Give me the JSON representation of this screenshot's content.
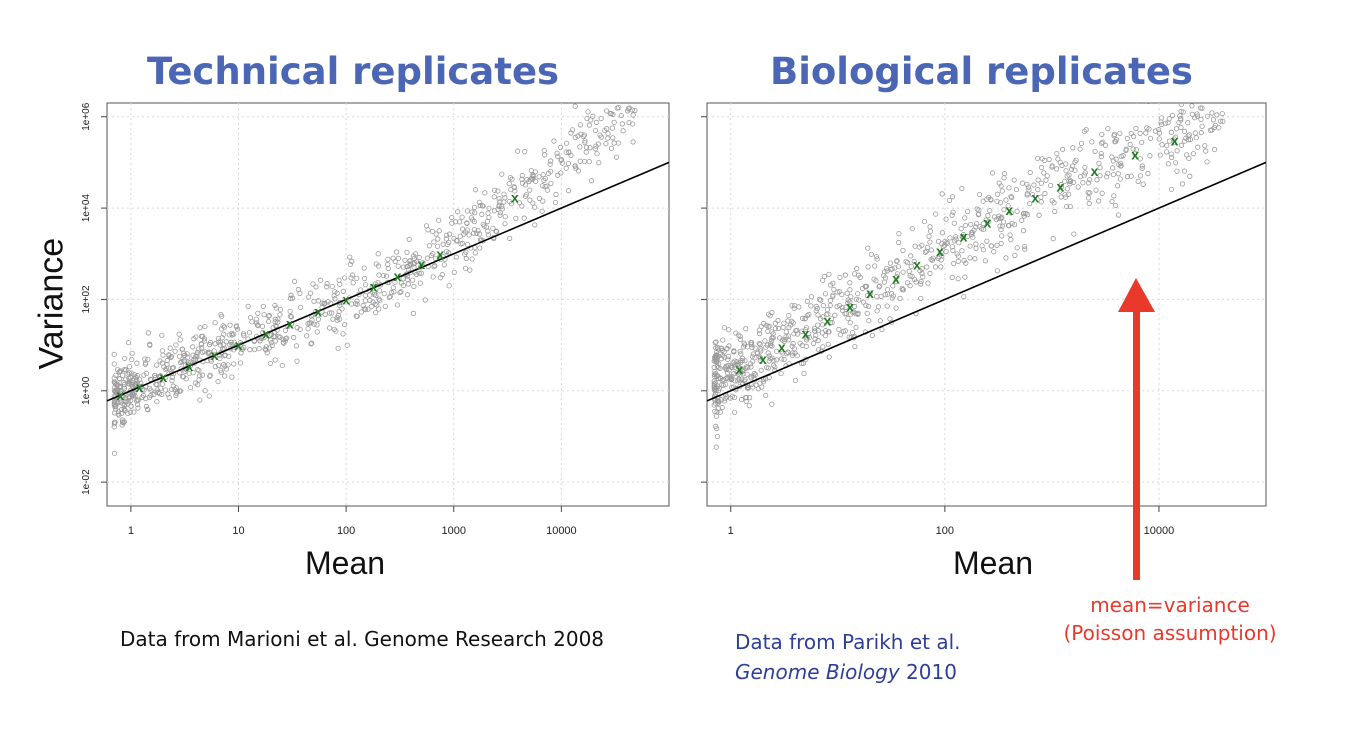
{
  "colors": {
    "title": "#4a66b5",
    "points": "#9a9a9a",
    "trend": "#1f7a1f",
    "line": "#000000",
    "arrow": "#e8392b",
    "source_left": "#111111",
    "source_right": "#2d3f96"
  },
  "shared": {
    "ylabel": "Variance",
    "xlabel": "Mean"
  },
  "chart_data": [
    {
      "type": "scatter",
      "title": "Technical replicates",
      "xlabel": "Mean",
      "ylabel": "Variance",
      "log_x": true,
      "log_y": true,
      "xlim": [
        0.6,
        100000
      ],
      "ylim": [
        0.003,
        2000000
      ],
      "x_ticks": [
        1,
        10,
        100,
        1000,
        10000
      ],
      "x_tick_labels": [
        "1",
        "10",
        "100",
        "1000",
        "10000"
      ],
      "y_ticks": [
        0.01,
        1,
        100,
        10000,
        1000000
      ],
      "y_tick_labels": [
        "1e-02",
        "1e+00",
        "1e+02",
        "1e+04",
        "1e+06"
      ],
      "grid": true,
      "line": {
        "label": "",
        "slope": 1,
        "intercept_log10": 0,
        "x_range": [
          0.6,
          100000
        ]
      },
      "trend_points": [
        [
          0.8,
          0.8
        ],
        [
          1.2,
          1.2
        ],
        [
          2,
          2
        ],
        [
          3.5,
          3.5
        ],
        [
          6,
          6
        ],
        [
          10,
          10
        ],
        [
          18,
          18
        ],
        [
          30,
          30
        ],
        [
          55,
          55
        ],
        [
          100,
          100
        ],
        [
          180,
          190
        ],
        [
          300,
          330
        ],
        [
          500,
          600
        ],
        [
          750,
          1000
        ],
        [
          3700,
          17000
        ]
      ],
      "cloud": {
        "x_range": [
          0.7,
          50000
        ],
        "log_spread_y": 0.35,
        "n": 900
      }
    },
    {
      "type": "scatter",
      "title": "Biological replicates",
      "xlabel": "Mean",
      "ylabel": "",
      "log_x": true,
      "log_y": true,
      "xlim": [
        0.6,
        100000
      ],
      "ylim": [
        0.003,
        2000000
      ],
      "x_ticks": [
        1,
        100,
        10000
      ],
      "x_tick_labels": [
        "1",
        "100",
        "10000"
      ],
      "y_ticks": [
        0.01,
        1,
        100,
        10000,
        1000000
      ],
      "y_tick_labels": [
        "",
        "",
        "",
        "",
        ""
      ],
      "grid": true,
      "line": {
        "label": "mean=variance",
        "slope": 1,
        "intercept_log10": 0,
        "x_range": [
          0.6,
          100000
        ]
      },
      "trend_points": [
        [
          1.2,
          3
        ],
        [
          2,
          5
        ],
        [
          3,
          9
        ],
        [
          5,
          18
        ],
        [
          8,
          35
        ],
        [
          13,
          70
        ],
        [
          20,
          140
        ],
        [
          35,
          290
        ],
        [
          55,
          580
        ],
        [
          90,
          1150
        ],
        [
          150,
          2400
        ],
        [
          250,
          4800
        ],
        [
          400,
          9000
        ],
        [
          700,
          17000
        ],
        [
          1200,
          30000
        ],
        [
          2500,
          65000
        ],
        [
          6000,
          150000
        ],
        [
          14000,
          300000
        ]
      ],
      "cloud": {
        "x_range": [
          0.7,
          40000
        ],
        "log_spread_y": 0.45,
        "n": 900
      },
      "annotation": {
        "line1": "mean=variance",
        "line2": "(Poisson assumption)"
      }
    }
  ],
  "sources": {
    "left": "Data from Marioni et al. Genome Research 2008",
    "right_prefix": "Data from Parikh et al.",
    "right_journal": "Genome Biology",
    "right_year": " 2010"
  }
}
